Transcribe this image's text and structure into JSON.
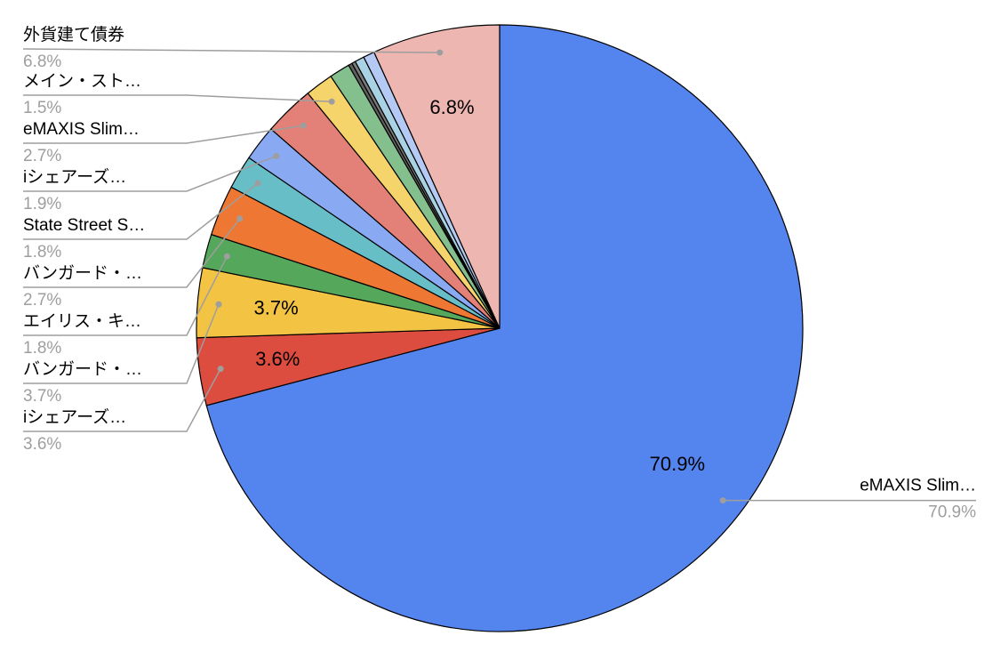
{
  "chart_data": {
    "type": "pie",
    "categories": [
      "eMAXIS Slim…",
      "iシェアーズ…",
      "バンガード・…",
      "エイリス・キ…",
      "バンガード・…",
      "State Street S…",
      "iシェアーズ…",
      "eMAXIS Slim…",
      "メイン・スト…",
      null,
      null,
      null,
      null,
      null,
      "外貨建て債券"
    ],
    "values": [
      70.9,
      3.6,
      3.7,
      1.8,
      2.7,
      1.8,
      1.9,
      2.7,
      1.5,
      1.1,
      0.2,
      0.2,
      0.5,
      0.6,
      6.8
    ],
    "value_labels": [
      "70.9%",
      "3.6%",
      "3.7%",
      "1.8%",
      "2.7%",
      "1.8%",
      "1.9%",
      "2.7%",
      "1.5%",
      null,
      null,
      null,
      null,
      null,
      "6.8%"
    ],
    "colors": [
      "#5484ed",
      "#dc4c3f",
      "#f3c343",
      "#55a75c",
      "#ee7733",
      "#68bec6",
      "#89a9f3",
      "#e38077",
      "#f5d46b",
      "#84c08d",
      "#5f5f5f",
      "#7a7a7a",
      "#a9d2e4",
      "#b5c9f5",
      "#edb6b1"
    ]
  }
}
